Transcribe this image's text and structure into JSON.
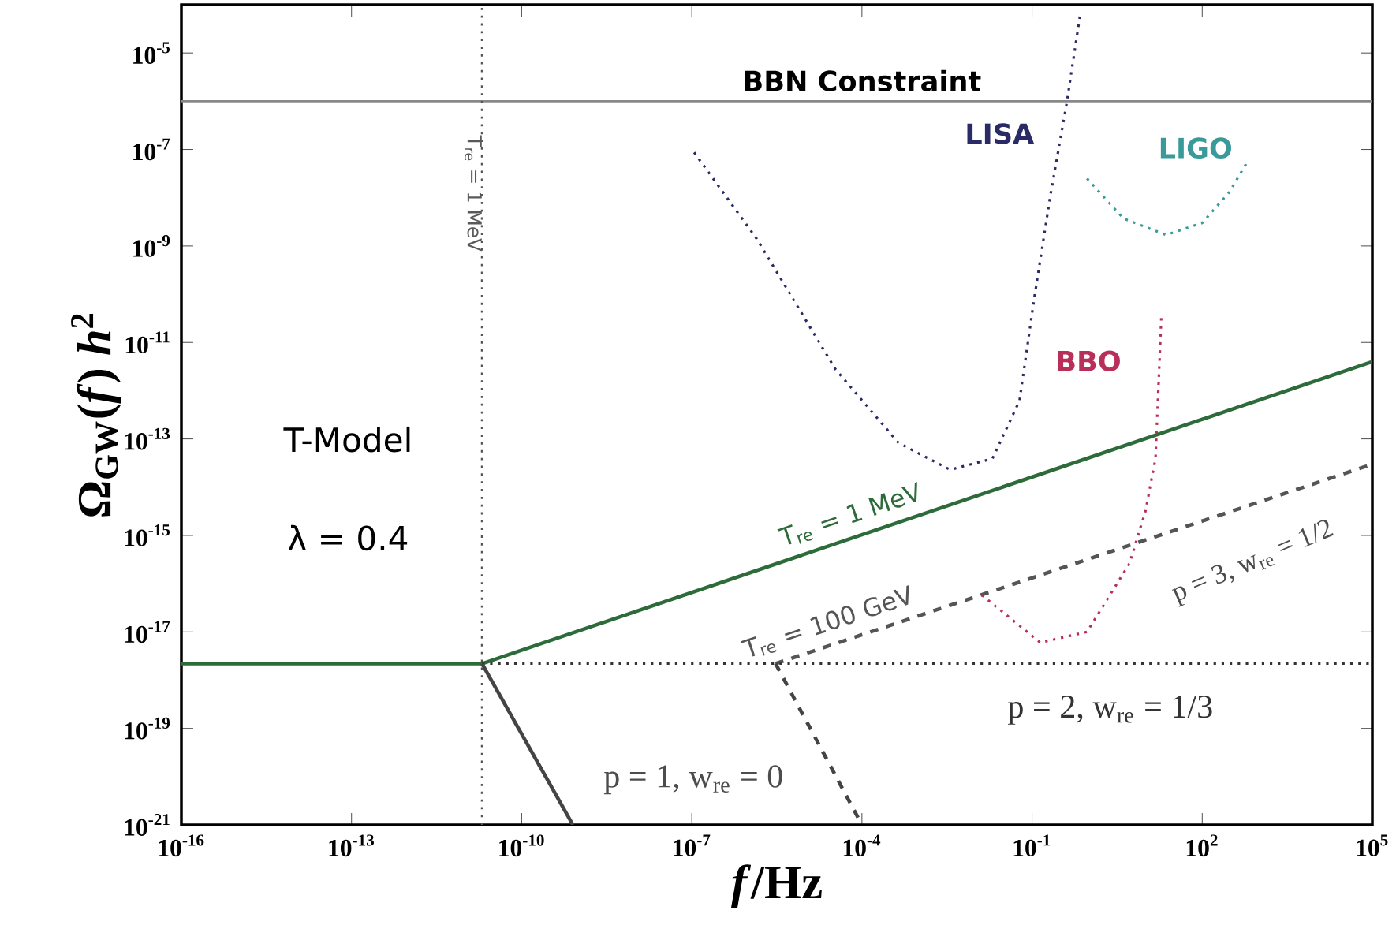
{
  "chart_data": {
    "type": "line",
    "xlabel": "*f*/Hz",
    "ylabel": "Ω$_{GW}$(*f*) *h*$^{2}$",
    "log": "xy",
    "xlim": [
      1e-16,
      100000.0
    ],
    "ylim": [
      1e-21,
      0.0001
    ],
    "xticks": [
      {
        "value": 1e-16,
        "label": "10$^{-16}$"
      },
      {
        "value": 1e-13,
        "label": "10$^{-13}$"
      },
      {
        "value": 1e-10,
        "label": "10$^{-10}$"
      },
      {
        "value": 1e-07,
        "label": "10$^{-7}$"
      },
      {
        "value": 0.0001,
        "label": "10$^{-4}$"
      },
      {
        "value": 0.1,
        "label": "10$^{-1}$"
      },
      {
        "value": 100,
        "label": "10$^{2}$"
      },
      {
        "value": 100000.0,
        "label": "10$^{5}$"
      }
    ],
    "yticks": [
      {
        "value": 1e-21,
        "label": "10$^{-21}$"
      },
      {
        "value": 1e-19,
        "label": "10$^{-19}$"
      },
      {
        "value": 1e-17,
        "label": "10$^{-17}$"
      },
      {
        "value": 1e-15,
        "label": "10$^{-15}$"
      },
      {
        "value": 1e-13,
        "label": "10$^{-13}$"
      },
      {
        "value": 1e-11,
        "label": "10$^{-11}$"
      },
      {
        "value": 1e-09,
        "label": "10$^{-9}$"
      },
      {
        "value": 1e-07,
        "label": "10$^{-7}$"
      },
      {
        "value": 1e-05,
        "label": "10$^{-5}$"
      }
    ],
    "series": [
      {
        "name": "T$_{re}$ = 1 MeV",
        "color": "#2e6b3a",
        "line_style": "solid",
        "x": [
          1e-16,
          2e-11,
          100000.0
        ],
        "values": [
          2.2e-18,
          2.2e-18,
          4e-12
        ]
      },
      {
        "name": "T$_{re}$ = 100 GeV",
        "color": "#555555",
        "line_style": "dashed",
        "x": [
          3e-06,
          100000.0
        ],
        "values": [
          2.2e-18,
          3e-14
        ]
      },
      {
        "color": "#333333",
        "line_style": "dotted",
        "x": [
          2e-11,
          100000.0
        ],
        "values": [
          2.2e-18,
          2.2e-18
        ]
      },
      {
        "color": "#444444",
        "line_style": "solid",
        "x": [
          2e-11,
          8e-10
        ],
        "values": [
          2.2e-18,
          1e-21
        ]
      },
      {
        "color": "#444444",
        "line_style": "dashed",
        "x": [
          3e-06,
          0.0001
        ],
        "values": [
          2.2e-18,
          1e-21
        ]
      },
      {
        "name": "LISA",
        "color": "#2a2a66",
        "line_style": "dotted",
        "x": [
          1.1e-07,
          1.4e-06,
          3.4e-05,
          0.00044,
          0.0036,
          0.02,
          0.06,
          0.11,
          0.21,
          0.41,
          0.72
        ],
        "values": [
          8.7e-08,
          1.4e-09,
          2.8e-12,
          8.3e-14,
          2.3e-14,
          3.9e-14,
          6.2e-13,
          8.7e-11,
          1.1e-08,
          9.5e-07,
          7.4e-05
        ]
      },
      {
        "name": "LIGO",
        "color": "#3a9a9a",
        "line_style": "dotted",
        "x": [
          0.93,
          4.1,
          23,
          100,
          300,
          650
        ],
        "values": [
          2.5e-08,
          3.7e-09,
          1.7e-09,
          3e-09,
          1.3e-08,
          6e-08
        ]
      },
      {
        "name": "BBO",
        "color": "#b8305a",
        "line_style": "dotted",
        "x": [
          0.013,
          0.14,
          0.93,
          5.2,
          10,
          15,
          19
        ],
        "values": [
          5.8e-17,
          6e-18,
          1e-17,
          2.6e-16,
          3.2e-15,
          3.9e-14,
          3.3e-11
        ]
      }
    ],
    "ref_lines": [
      {
        "axis": "y",
        "value": 1e-06,
        "label": "BBN Constraint",
        "color": "#888888",
        "line_style": "solid"
      },
      {
        "axis": "x",
        "value": 2e-11,
        "color": "#555555",
        "line_style": "dotted"
      }
    ],
    "annotations": [
      "T-Model",
      "λ = 0.4",
      "T$_{re}$ = 1 MeV",
      "p = 1, w$_{re}$ = 0",
      "p = 2, w$_{re}$ = 1/3",
      "p = 3, w$_{re}$ = 1/2"
    ]
  }
}
